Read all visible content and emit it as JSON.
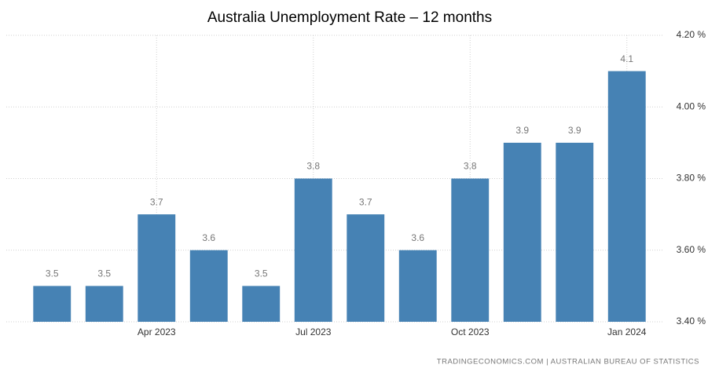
{
  "chart_data": {
    "type": "bar",
    "title": "Australia Unemployment Rate – 12 months",
    "categories": [
      null,
      null,
      "Apr 2023",
      null,
      null,
      "Jul 2023",
      null,
      null,
      "Oct 2023",
      null,
      null,
      "Jan 2024"
    ],
    "values": [
      3.5,
      3.5,
      3.7,
      3.6,
      3.5,
      3.8,
      3.7,
      3.6,
      3.8,
      3.9,
      3.9,
      4.1
    ],
    "color": "#4682b4",
    "ylim": [
      3.4,
      4.2
    ],
    "yticks": [
      {
        "value": 3.4,
        "label": "3.40 %"
      },
      {
        "value": 3.6,
        "label": "3.60 %"
      },
      {
        "value": 3.8,
        "label": "3.80 %"
      },
      {
        "value": 4.0,
        "label": "4.00 %"
      },
      {
        "value": 4.2,
        "label": "4.20 %"
      }
    ],
    "grid": true,
    "source": "TRADINGECONOMICS.COM  |  AUSTRALIAN BUREAU OF STATISTICS"
  }
}
